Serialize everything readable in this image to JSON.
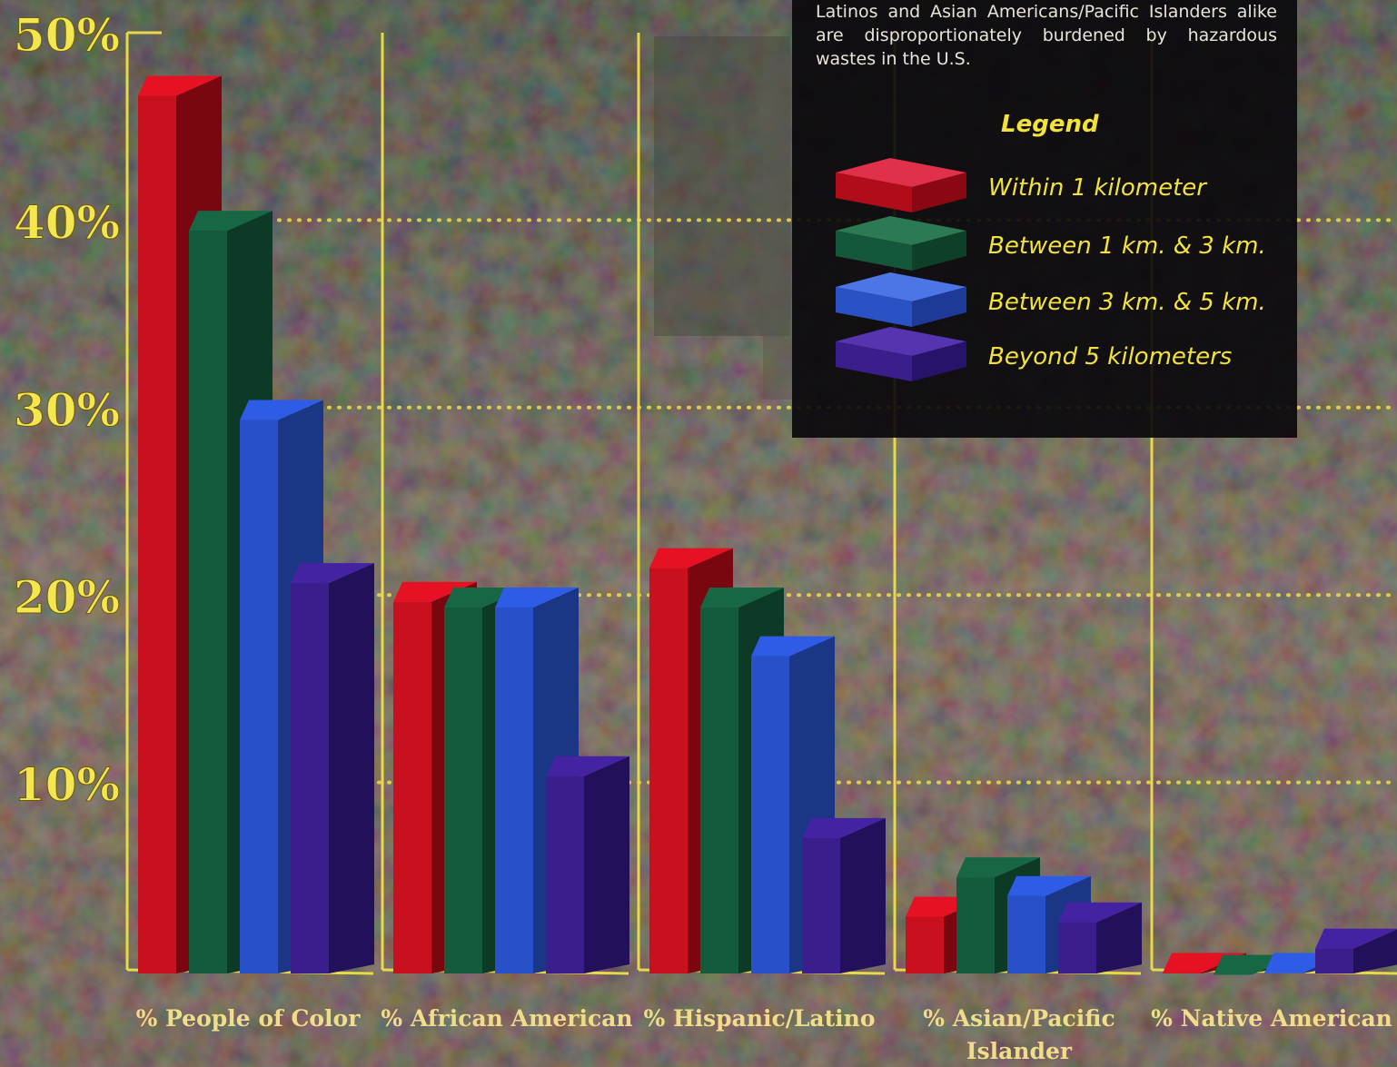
{
  "caption": "Latinos and Asian Americans/Pacific Islanders alike are disproportionately burdened by hazardous wastes in the U.S.",
  "legend": {
    "title": "Legend",
    "items": [
      {
        "label": "Within 1 kilometer",
        "color": "#c8101e"
      },
      {
        "label": "Between 1 km. & 3 km.",
        "color": "#145a3c"
      },
      {
        "label": "Between 3 km. & 5 km.",
        "color": "#2850c8"
      },
      {
        "label": "Beyond 5 kilometers",
        "color": "#3a1e8c"
      }
    ]
  },
  "colors": {
    "axis": "#e8d84a",
    "tick_text": "#f4e64e",
    "category_text": "#f1dc8a"
  },
  "chart_data": {
    "type": "bar",
    "categories": [
      "% People of Color",
      "% African American",
      "% Hispanic/Latino",
      "% Asian/Pacific Islander",
      "% Native American"
    ],
    "series": [
      {
        "name": "Within 1 kilometer",
        "values": [
          47.7,
          20.7,
          22.5,
          3.9,
          0.9
        ]
      },
      {
        "name": "Between 1 km. & 3 km.",
        "values": [
          40.5,
          20.4,
          20.4,
          6.0,
          0.8
        ]
      },
      {
        "name": "Between 3 km. & 5 km.",
        "values": [
          30.4,
          20.4,
          17.8,
          5.0,
          0.9
        ]
      },
      {
        "name": "Beyond 5 kilometers",
        "values": [
          21.7,
          11.4,
          8.1,
          3.6,
          2.2
        ]
      }
    ],
    "y_ticks": [
      "50%",
      "40%",
      "30%",
      "20%",
      "10%"
    ],
    "ylim": [
      0,
      50
    ],
    "grid": "dotted yellow at 10% intervals"
  }
}
